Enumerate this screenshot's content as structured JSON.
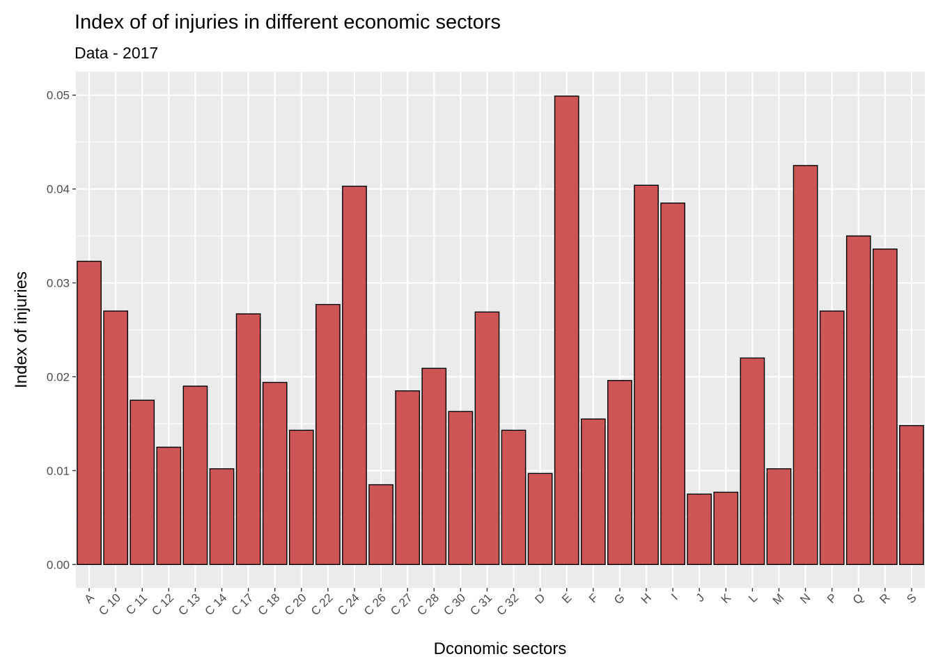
{
  "chart_data": {
    "type": "bar",
    "title": "Index of of injuries in different economic sectors",
    "subtitle": "Data - 2017",
    "xlabel": "Dconomic sectors",
    "ylabel": "Index of injuries",
    "categories": [
      "A",
      "C 10",
      "C 11",
      "C 12",
      "C 13",
      "C 14",
      "C 17",
      "C 18",
      "C 20",
      "C 22",
      "C 24",
      "C 26",
      "C 27",
      "C 28",
      "C 30",
      "C 31",
      "C 32",
      "D",
      "E",
      "F",
      "G",
      "H",
      "I",
      "J",
      "K",
      "L",
      "M",
      "N",
      "P",
      "Q",
      "R",
      "S"
    ],
    "values": [
      0.0323,
      0.027,
      0.0175,
      0.0125,
      0.019,
      0.0102,
      0.0267,
      0.0194,
      0.0143,
      0.0277,
      0.0403,
      0.0085,
      0.0185,
      0.0209,
      0.0163,
      0.0269,
      0.0143,
      0.0097,
      0.0499,
      0.0155,
      0.0196,
      0.0404,
      0.0385,
      0.0075,
      0.0077,
      0.022,
      0.0102,
      0.0425,
      0.027,
      0.035,
      0.0336,
      0.0148
    ],
    "y_ticks": [
      "0.00",
      "0.01",
      "0.02",
      "0.03",
      "0.04",
      "0.05"
    ],
    "ylim": [
      -0.0025,
      0.0525
    ],
    "grid": true,
    "bar_color": "#cd5555",
    "bar_outline": "#000000",
    "panel_color": "#ebebeb"
  }
}
